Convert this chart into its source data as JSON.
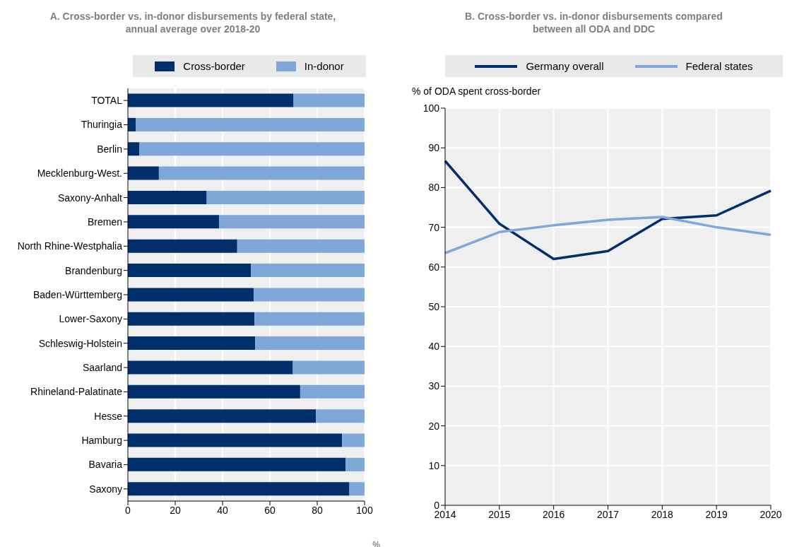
{
  "chart_data": [
    {
      "type": "bar",
      "orientation": "horizontal",
      "stacked": true,
      "title": "A. Cross-border vs. in-donor disbursements by federal state, annual average over 2018-20",
      "xlabel": "%",
      "categories": [
        "TOTAL",
        "Thuringia",
        "Berlin",
        "Mecklenburg-West.",
        "Saxony-Anhalt",
        "Bremen",
        "North Rhine-Westphalia",
        "Brandenburg",
        "Baden-Württemberg",
        "Lower-Saxony",
        "Schleswig-Holstein",
        "Saarland",
        "Rhineland-Palatinate",
        "Hesse",
        "Hamburg",
        "Bavaria",
        "Saxony"
      ],
      "series": [
        {
          "name": "Cross-border",
          "color": "#002f6c",
          "values": [
            70,
            3.4,
            4.9,
            13.1,
            33.3,
            38.5,
            46.2,
            52,
            53.2,
            53.5,
            53.8,
            69.7,
            72.8,
            79.5,
            90.5,
            92,
            93.6
          ]
        },
        {
          "name": "In-donor",
          "color": "#7fa8d9",
          "values": [
            30,
            96.6,
            95.1,
            86.9,
            66.7,
            61.5,
            53.8,
            48,
            46.8,
            46.5,
            46.2,
            30.3,
            27.2,
            20.5,
            9.5,
            8,
            6.4
          ]
        }
      ],
      "xlim": [
        0,
        100
      ],
      "xticks": [
        0,
        20,
        40,
        60,
        80,
        100
      ],
      "grid": "x",
      "legend": "top"
    },
    {
      "type": "line",
      "title": "B. Cross-border vs. in-donor disbursements compared between all ODA and DDC",
      "ylabel": "% of ODA spent cross-border",
      "categories": [
        "2014",
        "2015",
        "2016",
        "2017",
        "2018",
        "2019",
        "2020"
      ],
      "series": [
        {
          "name": "Germany overall",
          "color": "#002f6c",
          "values": [
            86.7,
            70.9,
            62.0,
            64.0,
            72.1,
            73.0,
            79.2
          ]
        },
        {
          "name": "Federal states",
          "color": "#7fa8d9",
          "values": [
            63.5,
            68.8,
            70.5,
            71.9,
            72.6,
            70.0,
            68.1
          ]
        }
      ],
      "ylim": [
        0,
        100
      ],
      "yticks": [
        0,
        10,
        20,
        30,
        40,
        50,
        60,
        70,
        80,
        90,
        100
      ],
      "grid": true,
      "legend": "top"
    }
  ]
}
